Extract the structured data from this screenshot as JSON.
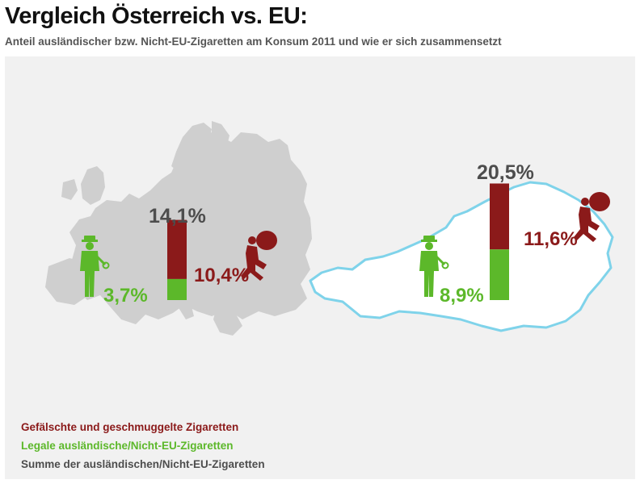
{
  "header": {
    "title": "Vergleich Österreich vs. EU:",
    "subtitle": "Anteil ausländischer bzw. Nicht-EU-Zigaretten am Konsum 2011 und wie er sich zusammensetzt"
  },
  "colors": {
    "counterfeit": "#8b1a1a",
    "legal": "#5cb82a",
    "sum": "#4d4d4d",
    "map_eu": "#cfcfcf",
    "map_austria_outline": "#7fd3ea"
  },
  "icons": {
    "customs_officer": "customs-officer-icon",
    "smuggler": "smuggler-icon"
  },
  "chart_data": [
    {
      "type": "bar",
      "stacked": true,
      "region": "EU",
      "series": [
        {
          "name": "Legale ausländische/Nicht-EU-Zigaretten",
          "values": [
            3.7
          ]
        },
        {
          "name": "Gefälschte und geschmuggelte Zigaretten",
          "values": [
            10.4
          ]
        }
      ],
      "total": 14.1,
      "labels": {
        "total": "14,1%",
        "legal": "3,7%",
        "counterfeit": "10,4%"
      }
    },
    {
      "type": "bar",
      "stacked": true,
      "region": "Österreich",
      "series": [
        {
          "name": "Legale ausländische/Nicht-EU-Zigaretten",
          "values": [
            8.9
          ]
        },
        {
          "name": "Gefälschte und geschmuggelte Zigaretten",
          "values": [
            11.6
          ]
        }
      ],
      "total": 20.5,
      "labels": {
        "total": "20,5%",
        "legal": "8,9%",
        "counterfeit": "11,6%"
      }
    }
  ],
  "legend": {
    "counterfeit": "Gefälschte und geschmuggelte Zigaretten",
    "legal": "Legale ausländische/Nicht-EU-Zigaretten",
    "sum": "Summe der ausländischen/Nicht-EU-Zigaretten"
  }
}
